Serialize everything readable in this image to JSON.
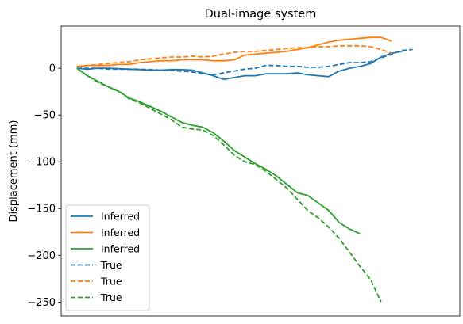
{
  "chart_data": {
    "type": "line",
    "title": "Dual-image system",
    "xlabel": "",
    "ylabel": "Displacement (mm)",
    "xlim": [
      -3,
      73
    ],
    "ylim": [
      -265,
      45
    ],
    "yticks": [
      0,
      -50,
      -100,
      -150,
      -200,
      -250
    ],
    "ytick_labels": [
      "0",
      "−50",
      "−100",
      "−150",
      "−200",
      "−250"
    ],
    "show_xticks": false,
    "grid": false,
    "legend_position": "lower-left",
    "series": [
      {
        "name": "Inferred",
        "color": "#1f77b4",
        "dash": "solid",
        "x": [
          0,
          2,
          4,
          6,
          8,
          10,
          12,
          14,
          16,
          18,
          20,
          22,
          24,
          26,
          28,
          30,
          32,
          34,
          36,
          38,
          40,
          42,
          44,
          46,
          48,
          50,
          52,
          54,
          56,
          58,
          60,
          62,
          64,
          66,
          68,
          70
        ],
        "y": [
          0,
          -1,
          0,
          0,
          -0.5,
          -1,
          -1.5,
          -2,
          -2,
          -1.5,
          -1.5,
          -2,
          -5,
          -8,
          -12,
          -10,
          -8,
          -8,
          -6,
          -6,
          -6,
          -5,
          -7,
          -8,
          -9,
          -3,
          0,
          2,
          5,
          12,
          16,
          18,
          null,
          null,
          null,
          null
        ]
      },
      {
        "name": "Inferred",
        "color": "#ff7f0e",
        "dash": "solid",
        "x": [
          0,
          2,
          4,
          6,
          8,
          10,
          12,
          14,
          16,
          18,
          20,
          22,
          24,
          26,
          28,
          30,
          32,
          34,
          36,
          38,
          40,
          42,
          44,
          46,
          48,
          50,
          52,
          54,
          56,
          58,
          60,
          62,
          64,
          66,
          68,
          70
        ],
        "y": [
          2,
          3,
          3,
          3,
          4,
          4,
          6,
          7,
          8,
          8,
          9,
          9,
          9,
          8,
          8,
          9,
          14,
          15,
          16,
          17,
          18,
          20,
          22,
          25,
          28,
          30,
          31,
          32,
          33,
          33,
          29,
          null,
          null,
          null,
          null,
          null
        ]
      },
      {
        "name": "Inferred",
        "color": "#2ca02c",
        "dash": "solid",
        "x": [
          0,
          2,
          4,
          6,
          8,
          10,
          12,
          14,
          16,
          18,
          20,
          22,
          24,
          26,
          28,
          30,
          32,
          34,
          36,
          38,
          40,
          42,
          44,
          46,
          48,
          50,
          52,
          54,
          56,
          58,
          60,
          62,
          64,
          66,
          68,
          70
        ],
        "y": [
          0,
          -8,
          -14,
          -20,
          -25,
          -32,
          -36,
          -41,
          -46,
          -52,
          -58,
          -61,
          -63,
          -69,
          -78,
          -88,
          -95,
          -102,
          -108,
          -115,
          -124,
          -133,
          -136,
          -144,
          -152,
          -165,
          -172,
          -177,
          null,
          null,
          null,
          null,
          null,
          null,
          null,
          null
        ]
      },
      {
        "name": "True",
        "color": "#1f77b4",
        "dash": "dashed",
        "x": [
          0,
          2,
          4,
          6,
          8,
          10,
          12,
          14,
          16,
          18,
          20,
          22,
          24,
          26,
          28,
          30,
          32,
          34,
          36,
          38,
          40,
          42,
          44,
          46,
          48,
          50,
          52,
          54,
          56,
          58,
          60,
          62,
          64,
          66,
          68,
          70
        ],
        "y": [
          0,
          0,
          0,
          -1,
          -1,
          -1,
          -1,
          -1.5,
          -2,
          -2.5,
          -3,
          -4,
          -6,
          -7,
          -5,
          -3,
          -1,
          0,
          3,
          3,
          2,
          2,
          1,
          1,
          2,
          4,
          6,
          6,
          7,
          11,
          15,
          19,
          20,
          null,
          null,
          null
        ]
      },
      {
        "name": "True",
        "color": "#ff7f0e",
        "dash": "dashed",
        "x": [
          0,
          2,
          4,
          6,
          8,
          10,
          12,
          14,
          16,
          18,
          20,
          22,
          24,
          26,
          28,
          30,
          32,
          34,
          36,
          38,
          40,
          42,
          44,
          46,
          48,
          50,
          52,
          54,
          56,
          58,
          60,
          62,
          64,
          66,
          68,
          70
        ],
        "y": [
          2,
          3,
          4,
          5,
          6,
          7,
          9,
          10,
          11,
          12,
          12,
          13,
          12,
          13,
          15,
          17,
          18,
          18,
          19,
          20,
          21,
          22,
          22,
          23,
          23,
          24,
          24,
          24,
          23,
          20,
          16,
          null,
          null,
          null,
          null,
          null
        ]
      },
      {
        "name": "True",
        "color": "#2ca02c",
        "dash": "dashed",
        "x": [
          0,
          2,
          4,
          6,
          8,
          10,
          12,
          14,
          16,
          18,
          20,
          22,
          24,
          26,
          28,
          30,
          32,
          34,
          36,
          38,
          40,
          42,
          44,
          46,
          48,
          50,
          52,
          54,
          56,
          58,
          60,
          62,
          64,
          66,
          68,
          70
        ],
        "y": [
          0,
          -8,
          -15,
          -20,
          -24,
          -33,
          -37,
          -43,
          -49,
          -55,
          -63,
          -65,
          -66,
          -72,
          -82,
          -93,
          -100,
          -103,
          -110,
          -119,
          -128,
          -140,
          -152,
          -160,
          -170,
          -182,
          -197,
          -212,
          -226,
          -250,
          null,
          null,
          null,
          null,
          null,
          null
        ]
      }
    ]
  }
}
